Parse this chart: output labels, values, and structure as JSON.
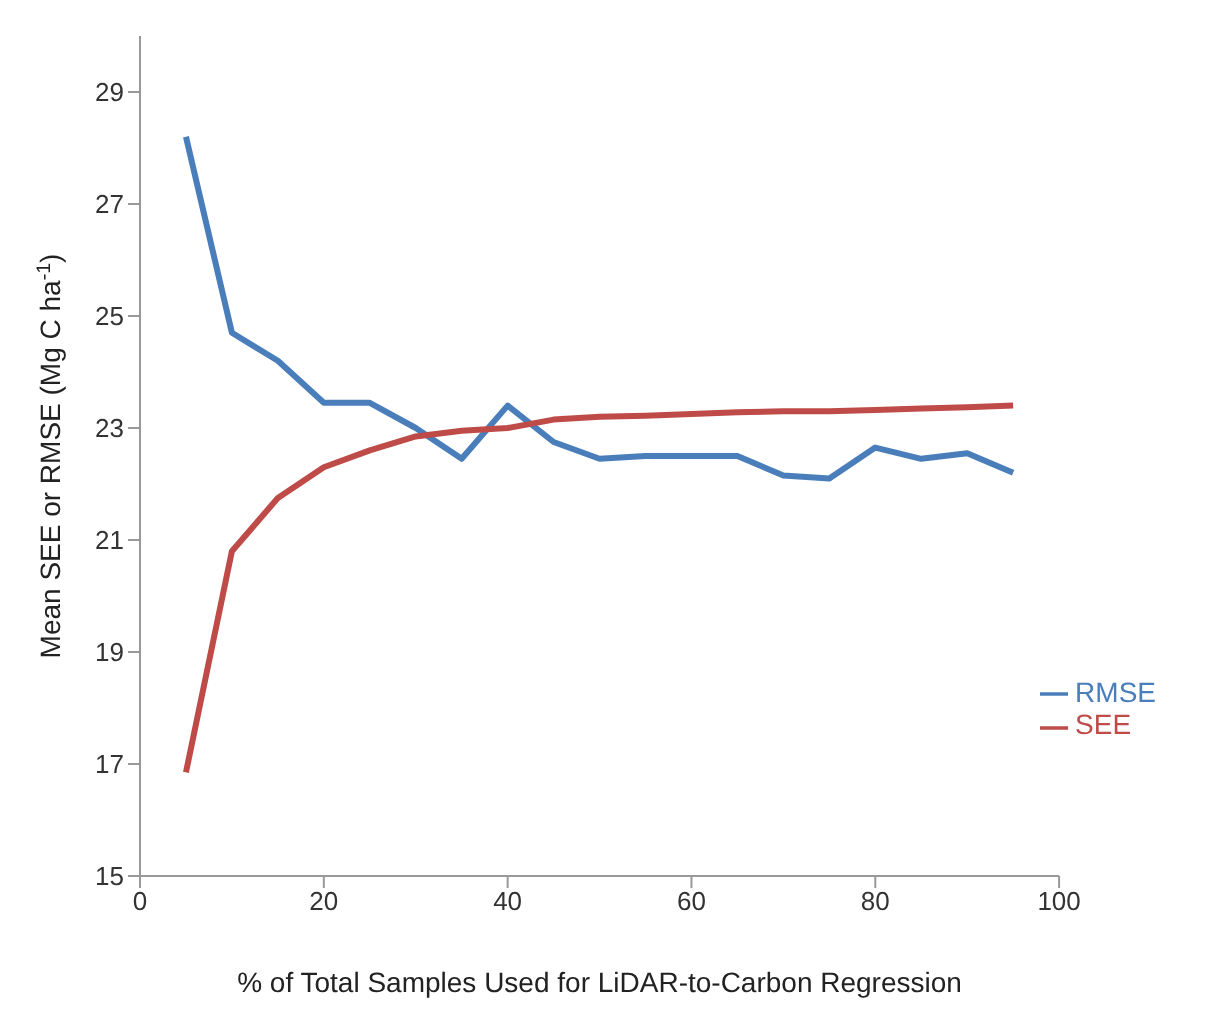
{
  "chart_data": {
    "type": "line",
    "xlabel": "% of Total Samples Used for LiDAR-to-Carbon Regression",
    "ylabel": "Mean SEE or RMSE (Mg C ha$^{-1}$)",
    "x": [
      5,
      10,
      15,
      20,
      25,
      30,
      35,
      40,
      45,
      50,
      55,
      60,
      65,
      70,
      75,
      80,
      85,
      90,
      95
    ],
    "series": [
      {
        "name": "RMSE",
        "color": "#4a7ebb",
        "values": [
          28.2,
          24.7,
          24.2,
          23.45,
          23.45,
          23.0,
          22.45,
          23.4,
          22.75,
          22.45,
          22.5,
          22.5,
          22.5,
          22.15,
          22.1,
          22.65,
          22.45,
          22.55,
          22.2
        ]
      },
      {
        "name": "SEE",
        "color": "#be4b48",
        "values": [
          16.85,
          20.8,
          21.75,
          22.3,
          22.6,
          22.85,
          22.95,
          23.0,
          23.15,
          23.2,
          23.22,
          23.25,
          23.28,
          23.3,
          23.3,
          23.32,
          23.35,
          23.37,
          23.4
        ]
      }
    ],
    "xlim": [
      0,
      100
    ],
    "xticks": [
      0,
      20,
      40,
      60,
      80,
      100
    ],
    "ylim": [
      15,
      30
    ],
    "yticks": [
      15,
      17,
      19,
      21,
      23,
      25,
      27,
      29
    ],
    "grid": false,
    "legend": "right",
    "marker": "none",
    "line_style": "solid"
  }
}
